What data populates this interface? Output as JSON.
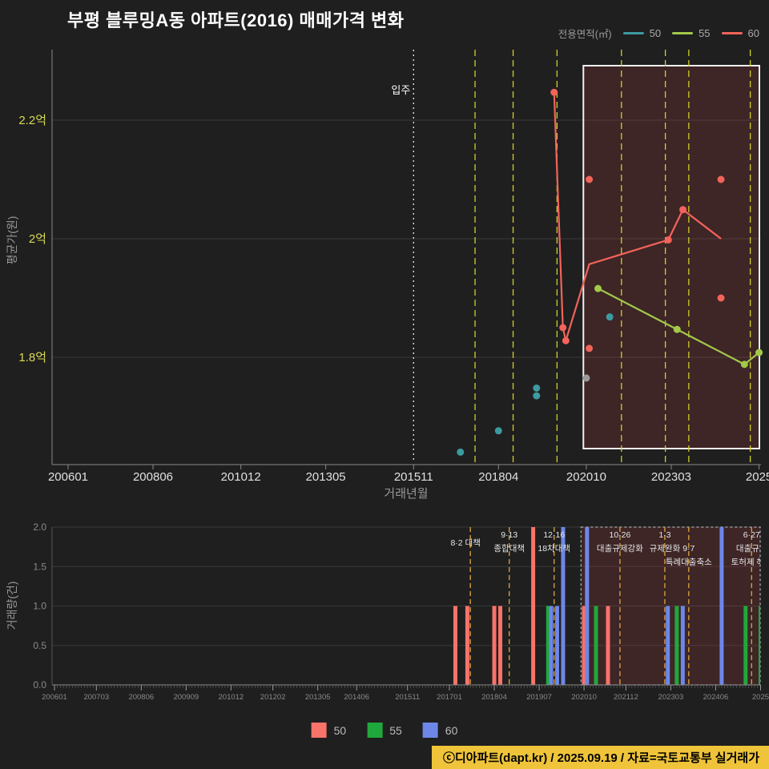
{
  "title": "부평 블루밍A동 아파트(2016) 매매가격 변화",
  "top_legend": {
    "title": "전용면적(㎡)",
    "items": [
      {
        "label": "50",
        "color": "#3c9aa0"
      },
      {
        "label": "55",
        "color": "#a2c94a"
      },
      {
        "label": "60",
        "color": "#f2635a"
      }
    ]
  },
  "bottom_legend": {
    "items": [
      {
        "label": "50",
        "color": "#f8736a"
      },
      {
        "label": "55",
        "color": "#1fa83c"
      },
      {
        "label": "60",
        "color": "#6d87e8"
      }
    ]
  },
  "footer": {
    "text": "ⓒ디아파트(dapt.kr) / 2025.09.19 / 자료=국토교통부 실거래가"
  },
  "chart_data": [
    {
      "type": "scatter",
      "title": "부평 블루밍A동 아파트(2016) 매매가격 변화",
      "xlabel": "거래년월",
      "ylabel": "평균가(원)",
      "unit": "억",
      "ylim": [
        1.6,
        2.33
      ],
      "x_ticks": [
        {
          "month": "2006-01",
          "label": "200601"
        },
        {
          "month": "2008-06",
          "label": "200806"
        },
        {
          "month": "2010-12",
          "label": "201012"
        },
        {
          "month": "2013-05",
          "label": "201305"
        },
        {
          "month": "2015-11",
          "label": "201511"
        },
        {
          "month": "2018-04",
          "label": "201804"
        },
        {
          "month": "2020-10",
          "label": "202010"
        },
        {
          "month": "2023-03",
          "label": "202303"
        },
        {
          "month": "2025-09",
          "label": "2025"
        }
      ],
      "y_ticks": [
        {
          "value": 2.2,
          "label": "2.2억"
        },
        {
          "value": 2.0,
          "label": "2억"
        },
        {
          "value": 1.8,
          "label": "1.8억"
        }
      ],
      "move_in": {
        "month": "2015-11",
        "label": "입주"
      },
      "policy_months": [
        "2017-08",
        "2018-09",
        "2019-12",
        "2021-10",
        "2023-01",
        "2023-09",
        "2025-06"
      ],
      "highlight_range": {
        "from": "2020-09",
        "to": "2025-10"
      },
      "series": [
        {
          "name": "50",
          "color": "#3c9aa0",
          "dots": [
            [
              "2017-03",
              1.64
            ],
            [
              "2018-04",
              1.676
            ],
            [
              "2019-05",
              1.735
            ],
            [
              "2019-05",
              1.748
            ],
            [
              "2021-06",
              1.868
            ]
          ],
          "line": []
        },
        {
          "name": "55",
          "color": "#a2c94a",
          "dots": [
            [
              "2021-02",
              1.916
            ],
            [
              "2023-05",
              1.847
            ],
            [
              "2025-04",
              1.788
            ],
            [
              "2025-09",
              1.808
            ]
          ],
          "line": [
            [
              "2021-02",
              1.916
            ],
            [
              "2023-05",
              1.847
            ],
            [
              "2025-04",
              1.788
            ],
            [
              "2025-09",
              1.808
            ]
          ]
        },
        {
          "name": "60",
          "color": "#f2635a",
          "dots": [
            [
              "2019-11",
              2.247
            ],
            [
              "2020-02",
              1.85
            ],
            [
              "2020-03",
              1.828
            ],
            [
              "2020-11",
              2.1
            ],
            [
              "2020-11",
              1.815
            ],
            [
              "2023-02",
              1.998
            ],
            [
              "2023-07",
              2.049
            ],
            [
              "2024-08",
              2.1
            ],
            [
              "2024-08",
              1.9
            ]
          ],
          "line": [
            [
              "2019-11",
              2.247
            ],
            [
              "2020-02",
              1.85
            ],
            [
              "2020-03",
              1.828
            ],
            [
              "2020-11",
              1.957
            ],
            [
              "2023-02",
              1.998
            ],
            [
              "2023-07",
              2.049
            ],
            [
              "2024-08",
              2.0
            ]
          ]
        },
        {
          "name": "기타",
          "color": "#9a9a9a",
          "dots": [
            [
              "2020-10",
              1.765
            ]
          ],
          "line": []
        }
      ]
    },
    {
      "type": "bar",
      "ylabel": "거래량(건)",
      "ylim": [
        0,
        2
      ],
      "y_ticks": [
        "0.0",
        "0.5",
        "1.0",
        "1.5",
        "2.0"
      ],
      "x_ticks": [
        {
          "month": "2006-01",
          "label": "200601"
        },
        {
          "month": "2007-03",
          "label": "200703"
        },
        {
          "month": "2008-06",
          "label": "200806"
        },
        {
          "month": "2009-09",
          "label": "200909"
        },
        {
          "month": "2010-12",
          "label": "201012"
        },
        {
          "month": "2012-02",
          "label": "201202"
        },
        {
          "month": "2013-05",
          "label": "201305"
        },
        {
          "month": "2014-06",
          "label": "201406"
        },
        {
          "month": "2015-11",
          "label": "201511"
        },
        {
          "month": "2017-01",
          "label": "201701"
        },
        {
          "month": "2018-04",
          "label": "201804"
        },
        {
          "month": "2019-07",
          "label": "201907"
        },
        {
          "month": "2020-10",
          "label": "202010"
        },
        {
          "month": "2021-12",
          "label": "202112"
        },
        {
          "month": "2023-03",
          "label": "202303"
        },
        {
          "month": "2024-06",
          "label": "202406"
        },
        {
          "month": "2025-09",
          "label": "2025"
        }
      ],
      "policy_months": [
        "2017-08",
        "2018-09",
        "2019-12",
        "2021-10",
        "2023-01",
        "2023-09",
        "2025-06"
      ],
      "highlight_range": {
        "from": "2020-09",
        "to": "2025-10"
      },
      "series_colors": {
        "50": "#f8736a",
        "55": "#1fa83c",
        "60": "#6d87e8"
      },
      "bars": [
        [
          "2017-03",
          "50",
          1
        ],
        [
          "2017-07",
          "50",
          1
        ],
        [
          "2018-04",
          "50",
          1
        ],
        [
          "2018-06",
          "50",
          1
        ],
        [
          "2019-05",
          "50",
          2
        ],
        [
          "2019-10",
          "55",
          1
        ],
        [
          "2019-11",
          "60",
          1
        ],
        [
          "2020-01",
          "60",
          1
        ],
        [
          "2020-03",
          "60",
          2
        ],
        [
          "2020-10",
          "50",
          1
        ],
        [
          "2020-11",
          "60",
          2
        ],
        [
          "2021-02",
          "55",
          1
        ],
        [
          "2021-06",
          "50",
          1
        ],
        [
          "2023-02",
          "60",
          1
        ],
        [
          "2023-05",
          "55",
          1
        ],
        [
          "2023-07",
          "60",
          1
        ],
        [
          "2024-08",
          "60",
          2
        ],
        [
          "2025-04",
          "55",
          1
        ],
        [
          "2025-09",
          "55",
          1
        ]
      ],
      "annotations": [
        {
          "month": "2017-08",
          "lines": [
            "8·2 대책"
          ]
        },
        {
          "month": "2018-09",
          "lines": [
            "9·13",
            "종합대책"
          ]
        },
        {
          "month": "2019-12",
          "lines": [
            "12·16",
            "18차대책"
          ]
        },
        {
          "month": "2021-10",
          "lines": [
            "10·26",
            "대출규제강화"
          ]
        },
        {
          "month": "2023-01",
          "lines": [
            "1·3",
            "규제완화"
          ]
        },
        {
          "month": "2023-09",
          "lines": [
            "9·7",
            "특례대출축소"
          ],
          "row_offset": 1
        },
        {
          "month": "2025-06",
          "lines": [
            "6·27",
            "대출규제",
            "토허제 해제"
          ]
        }
      ]
    }
  ]
}
